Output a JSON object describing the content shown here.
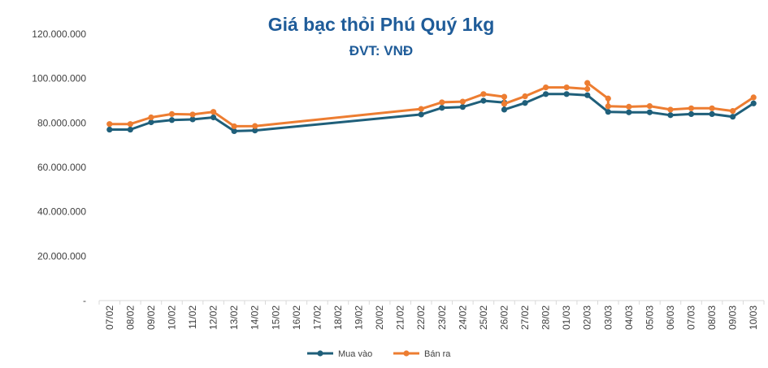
{
  "chart_data": {
    "type": "line",
    "title": "Giá bạc thỏi Phú Quý 1kg",
    "subtitle": "ĐVT: VNĐ",
    "ylim": [
      0,
      120000000
    ],
    "yticks": [
      {
        "value": 0,
        "label": "-"
      },
      {
        "value": 20000000,
        "label": "20.000.000"
      },
      {
        "value": 40000000,
        "label": "40.000.000"
      },
      {
        "value": 60000000,
        "label": "60.000.000"
      },
      {
        "value": 80000000,
        "label": "80.000.000"
      },
      {
        "value": 100000000,
        "label": "100.000.000"
      },
      {
        "value": 120000000,
        "label": "120.000.000"
      }
    ],
    "categories": [
      "07/02",
      "08/02",
      "09/02",
      "10/02",
      "11/02",
      "12/02",
      "13/02",
      "14/02",
      "15/02",
      "16/02",
      "17/02",
      "18/02",
      "19/02",
      "20/02",
      "21/02",
      "22/02",
      "23/02",
      "24/02",
      "25/02",
      "26/02",
      "27/02",
      "28/02",
      "01/03",
      "02/03",
      "03/03",
      "04/03",
      "05/03",
      "06/03",
      "07/03",
      "08/03",
      "09/03",
      "10/03"
    ],
    "series": [
      {
        "name": "Mua vào",
        "color": "#1f5f7a",
        "points": [
          {
            "x": 0,
            "y": 77000000
          },
          {
            "x": 1,
            "y": 77000000
          },
          {
            "x": 2,
            "y": 80300000
          },
          {
            "x": 3,
            "y": 81300000
          },
          {
            "x": 4,
            "y": 81600000
          },
          {
            "x": 5,
            "y": 82500000
          },
          {
            "x": 6,
            "y": 76300000
          },
          {
            "x": 7,
            "y": 76600000
          },
          {
            "x": 15,
            "y": 83800000
          },
          {
            "x": 16,
            "y": 86800000
          },
          {
            "x": 17,
            "y": 87200000
          },
          {
            "x": 18,
            "y": 90000000
          },
          {
            "x": 19,
            "y": 89200000
          },
          {
            "x": 19,
            "y": 86000000
          },
          {
            "x": 20,
            "y": 89000000
          },
          {
            "x": 21,
            "y": 93000000
          },
          {
            "x": 22,
            "y": 93000000
          },
          {
            "x": 23,
            "y": 92500000
          },
          {
            "x": 24,
            "y": 85000000
          },
          {
            "x": 25,
            "y": 84800000
          },
          {
            "x": 26,
            "y": 84800000
          },
          {
            "x": 27,
            "y": 83500000
          },
          {
            "x": 28,
            "y": 84000000
          },
          {
            "x": 29,
            "y": 84000000
          },
          {
            "x": 30,
            "y": 82800000
          },
          {
            "x": 31,
            "y": 88800000
          }
        ]
      },
      {
        "name": "Bán ra",
        "color": "#ed7d31",
        "points": [
          {
            "x": 0,
            "y": 79500000
          },
          {
            "x": 1,
            "y": 79500000
          },
          {
            "x": 2,
            "y": 82500000
          },
          {
            "x": 3,
            "y": 84000000
          },
          {
            "x": 4,
            "y": 83800000
          },
          {
            "x": 5,
            "y": 85000000
          },
          {
            "x": 6,
            "y": 78500000
          },
          {
            "x": 7,
            "y": 78600000
          },
          {
            "x": 15,
            "y": 86300000
          },
          {
            "x": 16,
            "y": 89300000
          },
          {
            "x": 17,
            "y": 89600000
          },
          {
            "x": 18,
            "y": 93000000
          },
          {
            "x": 19,
            "y": 91800000
          },
          {
            "x": 19,
            "y": 88600000
          },
          {
            "x": 20,
            "y": 92000000
          },
          {
            "x": 21,
            "y": 96000000
          },
          {
            "x": 22,
            "y": 96000000
          },
          {
            "x": 23,
            "y": 95300000
          },
          {
            "x": 23,
            "y": 98000000
          },
          {
            "x": 24,
            "y": 91000000
          },
          {
            "x": 24,
            "y": 87500000
          },
          {
            "x": 25,
            "y": 87300000
          },
          {
            "x": 26,
            "y": 87600000
          },
          {
            "x": 27,
            "y": 86000000
          },
          {
            "x": 28,
            "y": 86600000
          },
          {
            "x": 29,
            "y": 86600000
          },
          {
            "x": 30,
            "y": 85400000
          },
          {
            "x": 31,
            "y": 91500000
          }
        ]
      }
    ],
    "legend": [
      "Mua vào",
      "Bán ra"
    ],
    "legend_position": "bottom"
  }
}
